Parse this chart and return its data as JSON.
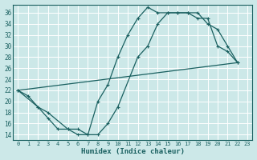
{
  "title": "",
  "xlabel": "Humidex (Indice chaleur)",
  "bg_color": "#cce8e8",
  "line_color": "#1a6060",
  "grid_color": "#b0d8d8",
  "xlim": [
    -0.5,
    23.5
  ],
  "ylim": [
    13,
    37.5
  ],
  "yticks": [
    14,
    16,
    18,
    20,
    22,
    24,
    26,
    28,
    30,
    32,
    34,
    36
  ],
  "xticks": [
    0,
    1,
    2,
    3,
    4,
    5,
    6,
    7,
    8,
    9,
    10,
    11,
    12,
    13,
    14,
    15,
    16,
    17,
    18,
    19,
    20,
    21,
    22,
    23
  ],
  "line1_x": [
    0,
    1,
    2,
    3,
    4,
    5,
    6,
    7,
    8,
    9,
    10,
    11,
    12,
    13,
    14,
    15,
    16,
    17,
    18,
    19,
    20,
    21,
    22
  ],
  "line1_y": [
    22,
    21,
    19,
    17,
    15,
    15,
    14,
    14,
    20,
    23,
    28,
    32,
    35,
    37,
    36,
    36,
    36,
    36,
    35,
    35,
    30,
    29,
    27
  ],
  "line2_x": [
    0,
    2,
    3,
    5,
    6,
    7,
    8,
    9,
    10,
    12,
    13,
    14,
    15,
    16,
    17,
    18,
    19,
    20,
    21,
    22
  ],
  "line2_y": [
    22,
    19,
    18,
    15,
    15,
    14,
    14,
    16,
    19,
    28,
    30,
    34,
    36,
    36,
    36,
    36,
    34,
    33,
    30,
    27
  ],
  "line3_x": [
    0,
    22
  ],
  "line3_y": [
    22,
    27
  ]
}
